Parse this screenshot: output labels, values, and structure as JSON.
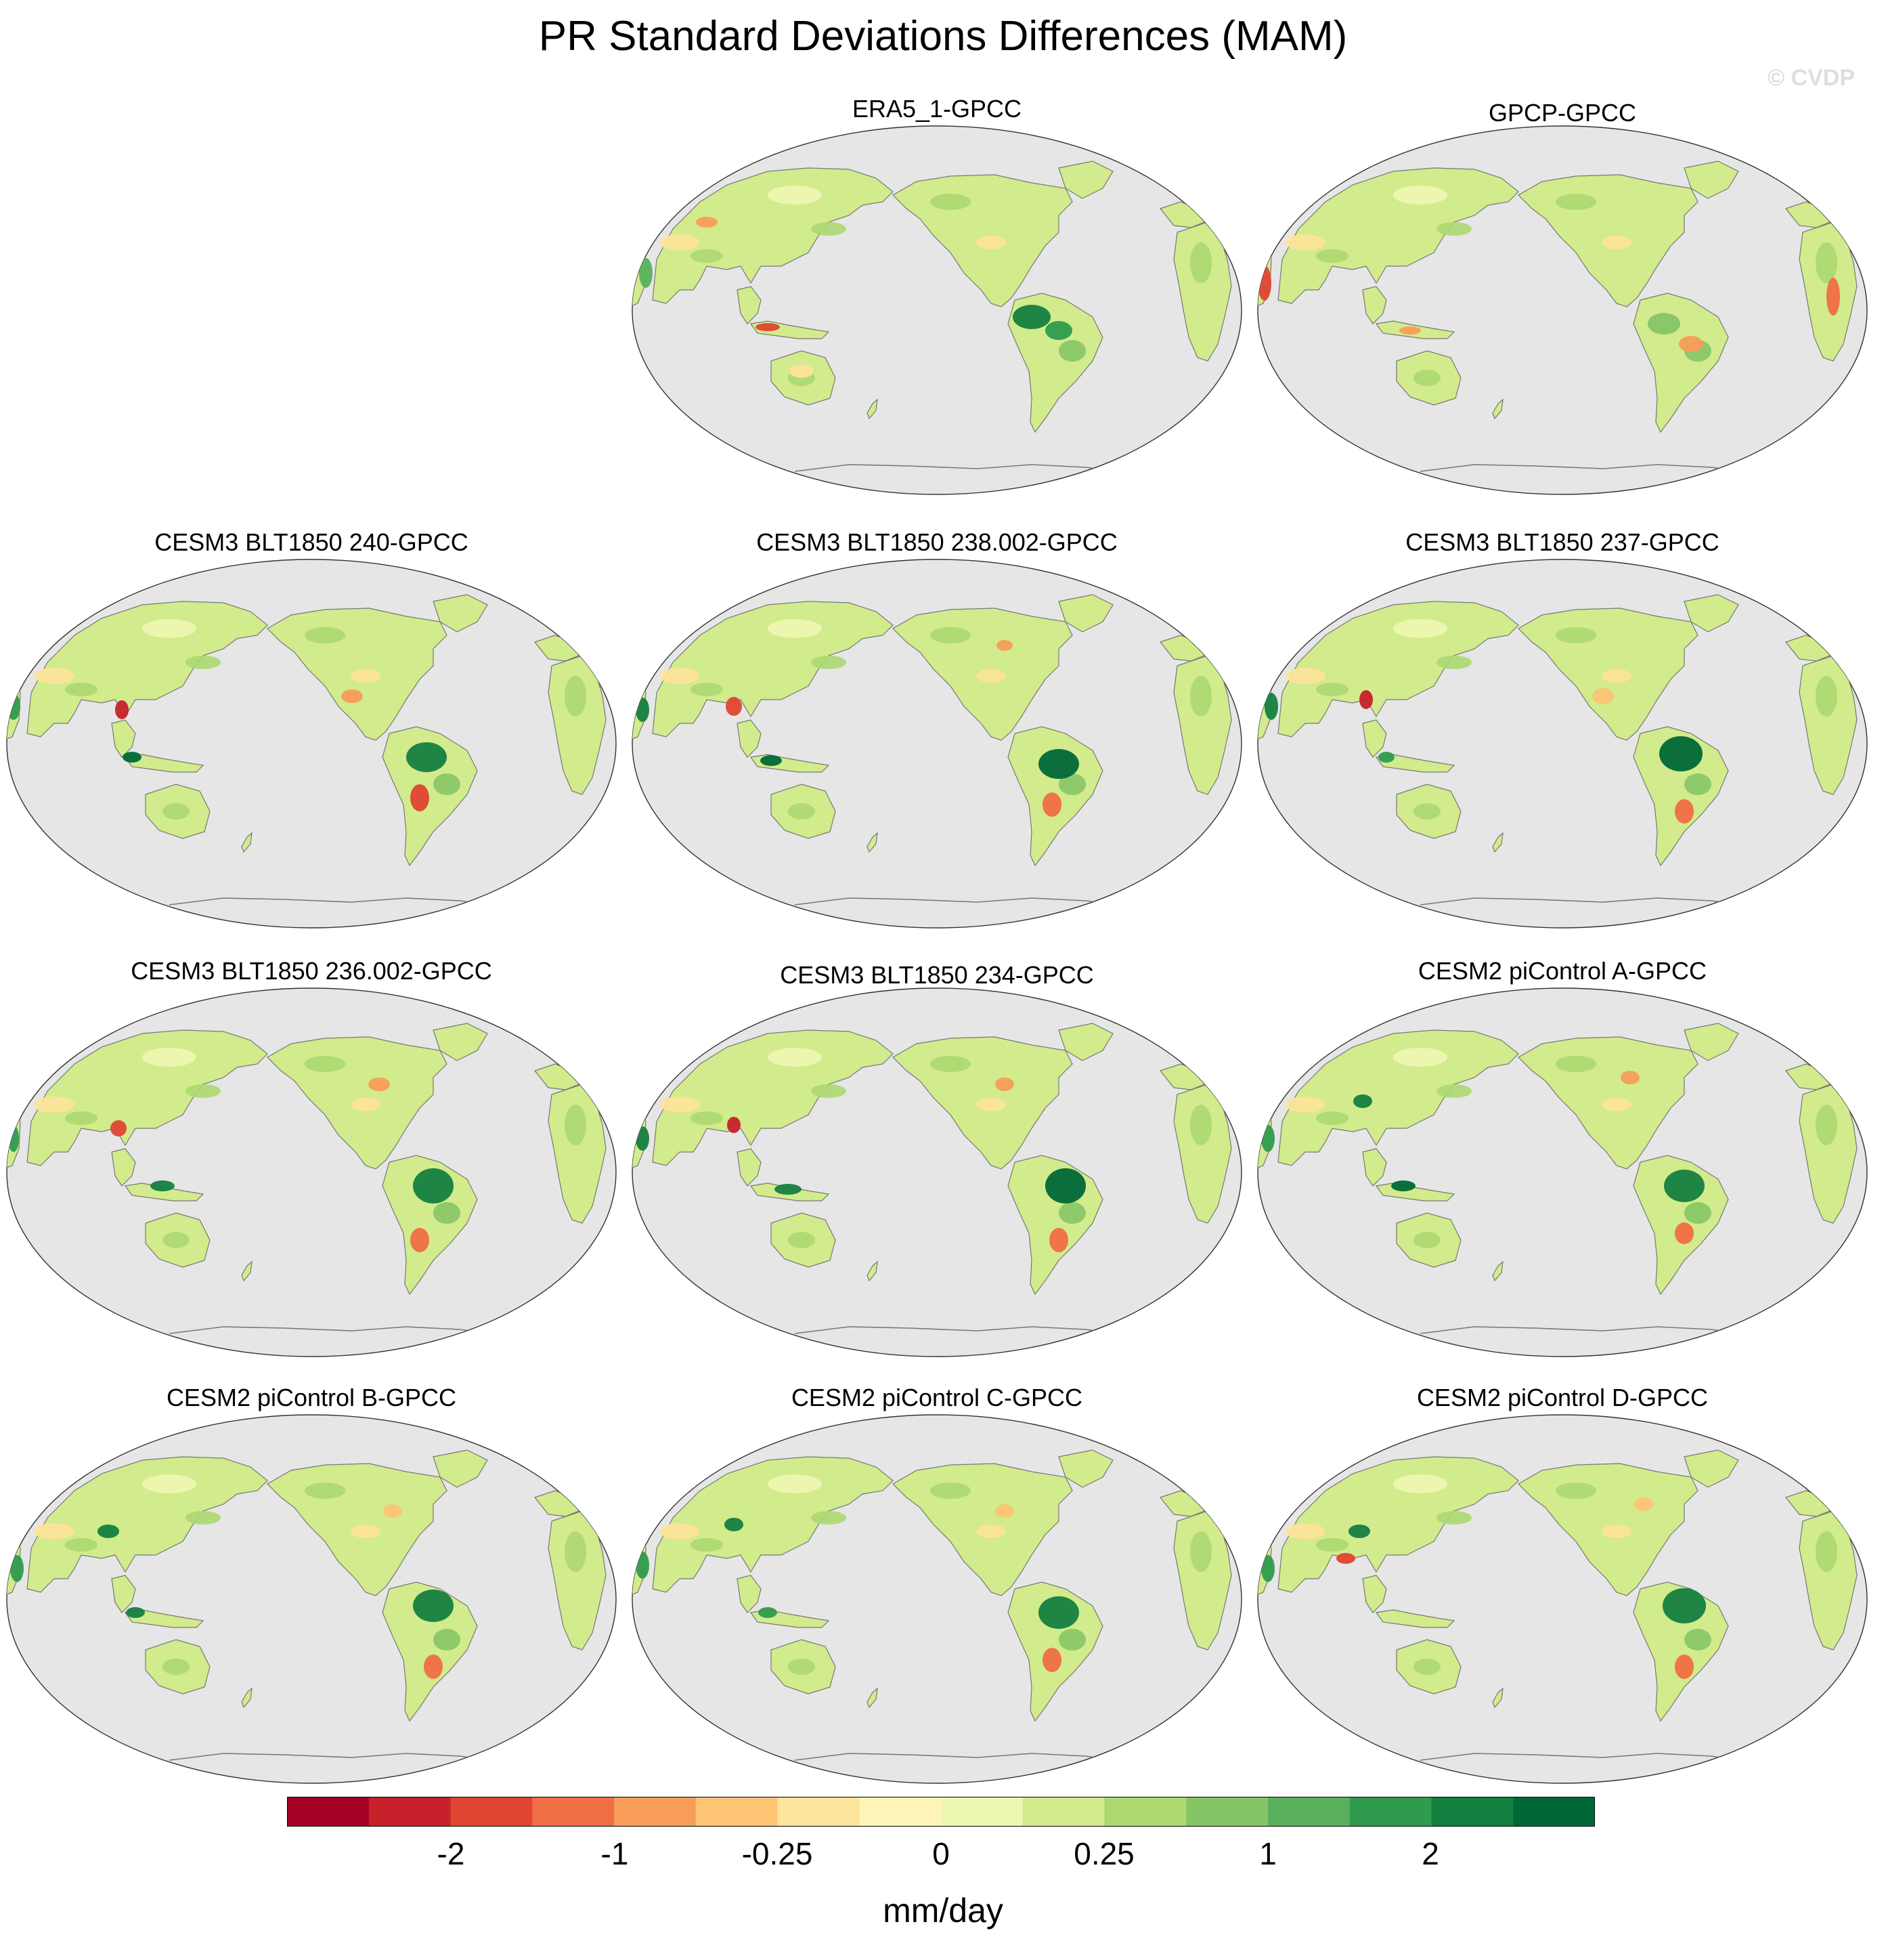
{
  "title": "PR Standard Deviations Differences (MAM)",
  "watermark": "© CVDP",
  "panels": [
    {
      "title": "ERA5_1-GPCC"
    },
    {
      "title": "GPCP-GPCC"
    },
    {
      "title": "CESM3 BLT1850 240-GPCC"
    },
    {
      "title": "CESM3 BLT1850 238.002-GPCC"
    },
    {
      "title": "CESM3 BLT1850 237-GPCC"
    },
    {
      "title": "CESM3 BLT1850 236.002-GPCC"
    },
    {
      "title": "CESM3 BLT1850 234-GPCC"
    },
    {
      "title": "CESM2 piControl A-GPCC"
    },
    {
      "title": "CESM2 piControl B-GPCC"
    },
    {
      "title": "CESM2 piControl C-GPCC"
    },
    {
      "title": "CESM2 piControl D-GPCC"
    }
  ],
  "map": {
    "projection": "Robinson (Pacific-centered)",
    "ocean_color": "#e6e6e6",
    "coastline_color": "#777777"
  },
  "colorbar": {
    "colors": [
      "#a50026",
      "#c6212a",
      "#e04531",
      "#f06e44",
      "#f89d59",
      "#fdc474",
      "#fee39a",
      "#fff5b8",
      "#eef7b2",
      "#d2eb8c",
      "#acd870",
      "#86c566",
      "#5ab15b",
      "#2f9b4e",
      "#148040",
      "#006837"
    ],
    "tick_labels": [
      "-2",
      "-1",
      "-0.25",
      "0",
      "0.25",
      "1",
      "2"
    ],
    "units": "mm/day"
  }
}
